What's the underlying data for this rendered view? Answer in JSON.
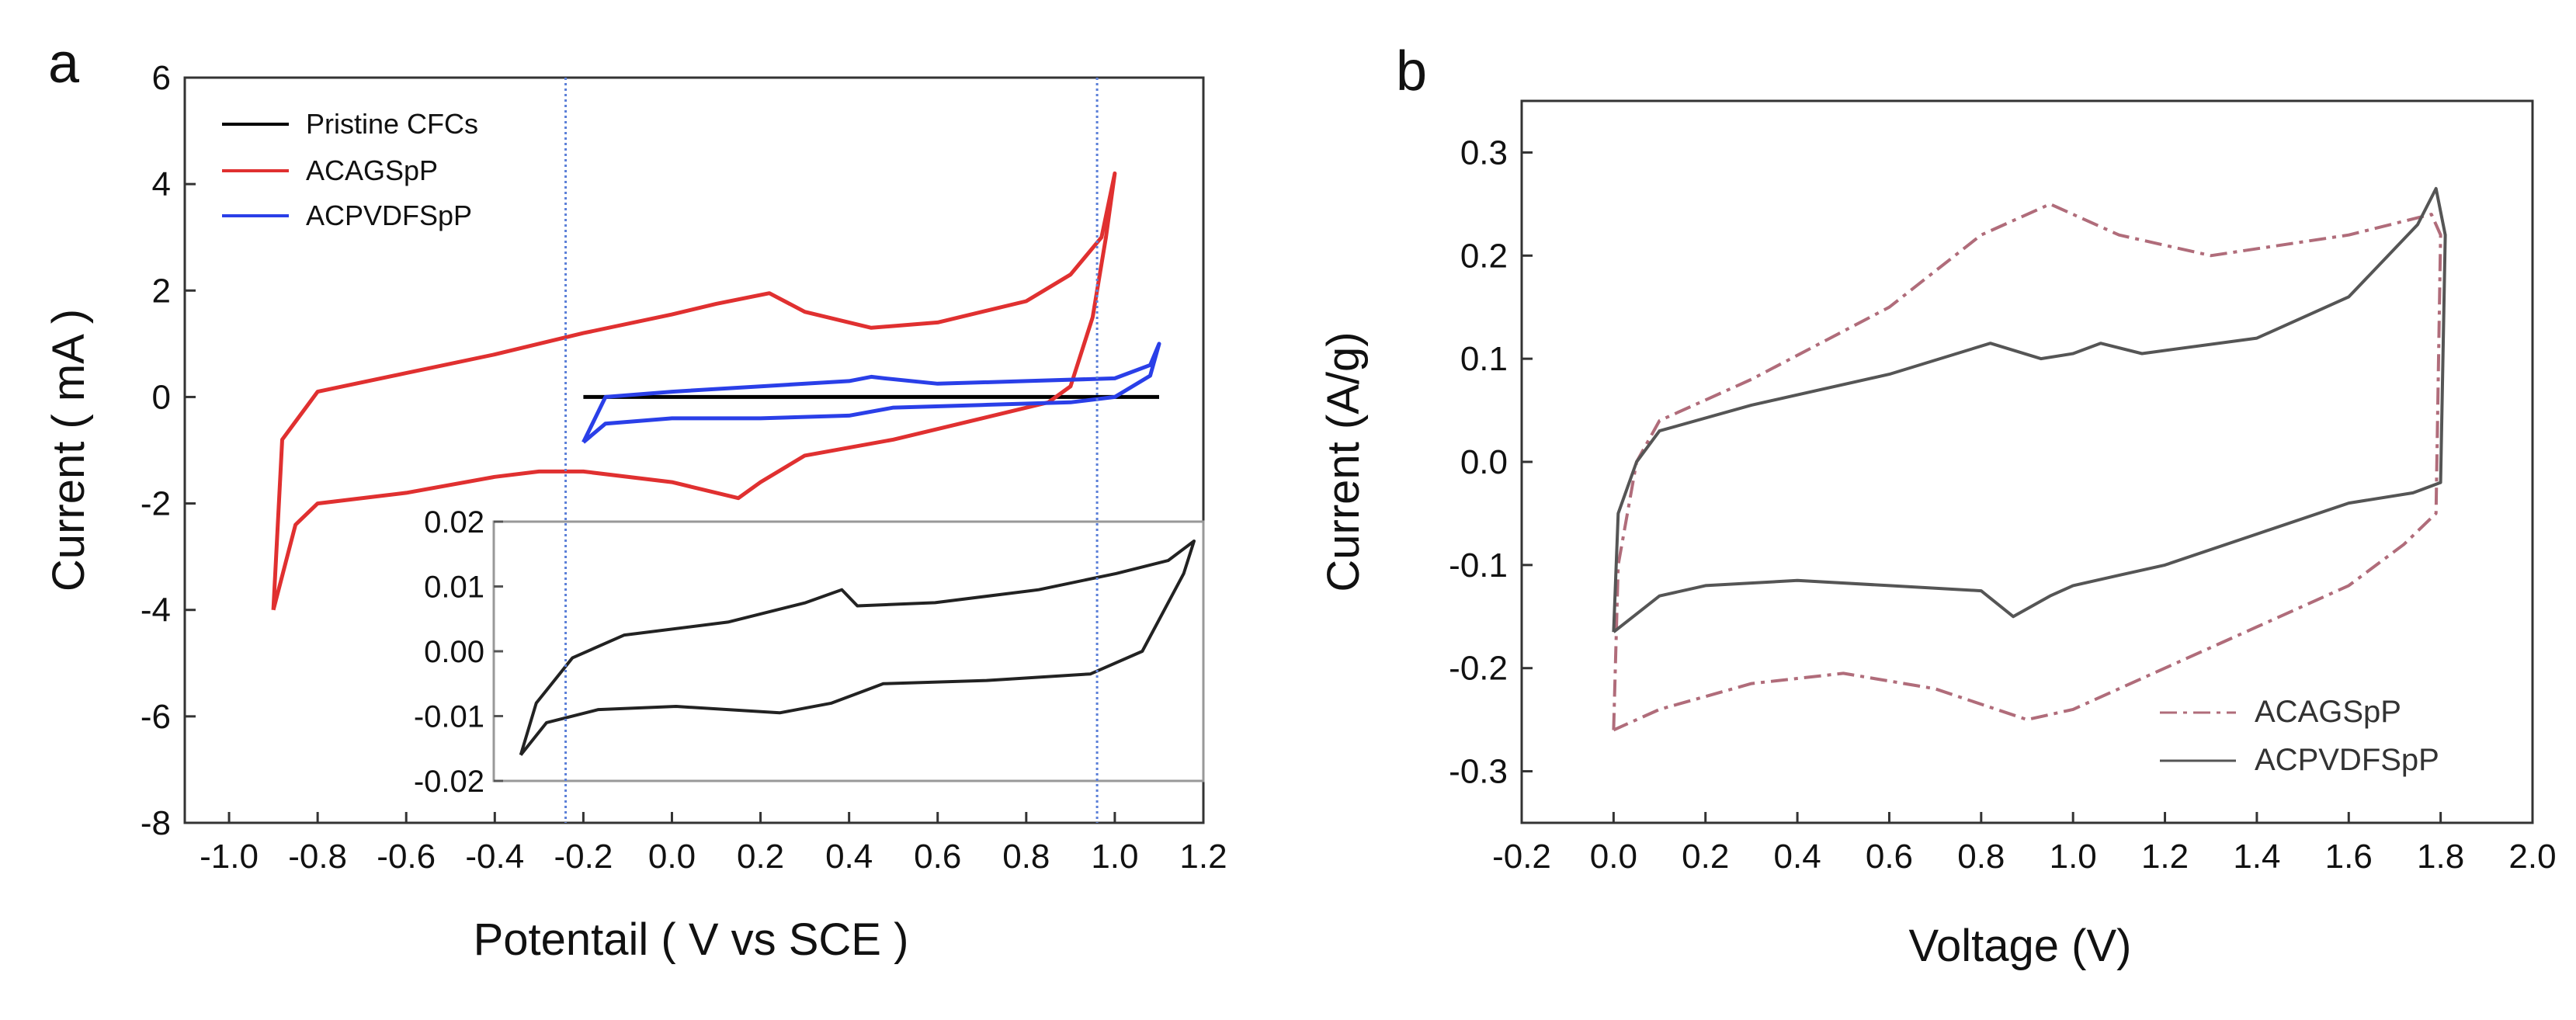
{
  "chart_data": [
    {
      "type": "line",
      "panel_label": "a",
      "xlabel": "Potentail ( V vs SCE )",
      "ylabel": "Current ( mA )",
      "xlim": [
        -1.1,
        1.2
      ],
      "ylim": [
        -8,
        6
      ],
      "x_ticks": [
        "-1.0",
        "-0.8",
        "-0.6",
        "-0.4",
        "-0.2",
        "0.0",
        "0.2",
        "0.4",
        "0.6",
        "0.8",
        "1.0",
        "1.2"
      ],
      "y_ticks": [
        "6",
        "4",
        "2",
        "0",
        "-2",
        "-4",
        "-6",
        "-8"
      ],
      "reference_lines_x": [
        -0.24,
        0.96
      ],
      "legend": [
        "Pristine CFCs",
        "ACAGSpP",
        "ACPVDFSpP"
      ],
      "series": [
        {
          "name": "Pristine CFCs",
          "color": "#000000",
          "points": [
            [
              -0.2,
              0
            ],
            [
              1.1,
              0
            ]
          ]
        },
        {
          "name": "ACAGSpP",
          "color": "#e03030",
          "points": [
            [
              -0.9,
              -4
            ],
            [
              -0.85,
              -2.4
            ],
            [
              -0.8,
              -2.0
            ],
            [
              -0.6,
              -1.8
            ],
            [
              -0.4,
              -1.5
            ],
            [
              -0.3,
              -1.4
            ],
            [
              -0.2,
              -1.4
            ],
            [
              0.0,
              -1.6
            ],
            [
              0.15,
              -1.9
            ],
            [
              0.2,
              -1.6
            ],
            [
              0.3,
              -1.1
            ],
            [
              0.5,
              -0.8
            ],
            [
              0.7,
              -0.4
            ],
            [
              0.85,
              -0.1
            ],
            [
              0.9,
              0.2
            ],
            [
              0.95,
              1.5
            ],
            [
              0.98,
              3.0
            ],
            [
              1.0,
              4.2
            ],
            [
              0.97,
              3.0
            ],
            [
              0.9,
              2.3
            ],
            [
              0.8,
              1.8
            ],
            [
              0.6,
              1.4
            ],
            [
              0.45,
              1.3
            ],
            [
              0.3,
              1.6
            ],
            [
              0.22,
              1.95
            ],
            [
              0.1,
              1.75
            ],
            [
              0.0,
              1.55
            ],
            [
              -0.2,
              1.2
            ],
            [
              -0.4,
              0.8
            ],
            [
              -0.6,
              0.45
            ],
            [
              -0.8,
              0.1
            ],
            [
              -0.88,
              -0.8
            ],
            [
              -0.9,
              -4
            ]
          ]
        },
        {
          "name": "ACPVDFSpP",
          "color": "#2a3fe8",
          "points": [
            [
              -0.2,
              -0.85
            ],
            [
              -0.15,
              -0.5
            ],
            [
              0.0,
              -0.4
            ],
            [
              0.2,
              -0.4
            ],
            [
              0.4,
              -0.35
            ],
            [
              0.5,
              -0.2
            ],
            [
              0.7,
              -0.15
            ],
            [
              0.9,
              -0.1
            ],
            [
              1.0,
              0.0
            ],
            [
              1.08,
              0.4
            ],
            [
              1.1,
              1.0
            ],
            [
              1.08,
              0.6
            ],
            [
              1.0,
              0.35
            ],
            [
              0.8,
              0.3
            ],
            [
              0.6,
              0.25
            ],
            [
              0.48,
              0.35
            ],
            [
              0.45,
              0.38
            ],
            [
              0.4,
              0.3
            ],
            [
              0.2,
              0.2
            ],
            [
              0.0,
              0.1
            ],
            [
              -0.15,
              0.0
            ],
            [
              -0.2,
              -0.85
            ]
          ]
        }
      ],
      "inset": {
        "xlim": [
          -0.24,
          1.1
        ],
        "ylim": [
          -0.02,
          0.02
        ],
        "y_ticks": [
          "0.02",
          "0.01",
          "0.00",
          "-0.01",
          "-0.02"
        ],
        "series": [
          {
            "name": "Pristine CFCs",
            "color": "#222222",
            "points": [
              [
                -0.2,
                -0.016
              ],
              [
                -0.15,
                -0.011
              ],
              [
                -0.05,
                -0.009
              ],
              [
                0.1,
                -0.0085
              ],
              [
                0.3,
                -0.0095
              ],
              [
                0.4,
                -0.008
              ],
              [
                0.5,
                -0.005
              ],
              [
                0.7,
                -0.0045
              ],
              [
                0.9,
                -0.0035
              ],
              [
                1.0,
                0.0
              ],
              [
                1.08,
                0.012
              ],
              [
                1.1,
                0.017
              ],
              [
                1.05,
                0.014
              ],
              [
                0.95,
                0.012
              ],
              [
                0.8,
                0.0095
              ],
              [
                0.6,
                0.0075
              ],
              [
                0.45,
                0.007
              ],
              [
                0.42,
                0.0095
              ],
              [
                0.35,
                0.0075
              ],
              [
                0.2,
                0.0045
              ],
              [
                0.0,
                0.0025
              ],
              [
                -0.1,
                -0.001
              ],
              [
                -0.17,
                -0.008
              ],
              [
                -0.2,
                -0.016
              ]
            ]
          }
        ]
      }
    },
    {
      "type": "line",
      "panel_label": "b",
      "xlabel": "Voltage (V)",
      "ylabel": "Current (A/g)",
      "xlim": [
        -0.2,
        2.0
      ],
      "ylim": [
        -0.35,
        0.35
      ],
      "x_ticks": [
        "-0.2",
        "0.0",
        "0.2",
        "0.4",
        "0.6",
        "0.8",
        "1.0",
        "1.2",
        "1.4",
        "1.6",
        "1.8",
        "2.0"
      ],
      "y_ticks": [
        "0.3",
        "0.2",
        "0.1",
        "0.0",
        "-0.1",
        "-0.2",
        "-0.3"
      ],
      "legend": [
        "ACAGSpP",
        "ACPVDFSpP"
      ],
      "series": [
        {
          "name": "ACAGSpP",
          "color": "#b06c7a",
          "dash": "dashdot",
          "points": [
            [
              0.0,
              -0.26
            ],
            [
              0.01,
              -0.1
            ],
            [
              0.05,
              0.0
            ],
            [
              0.1,
              0.04
            ],
            [
              0.3,
              0.08
            ],
            [
              0.6,
              0.15
            ],
            [
              0.8,
              0.22
            ],
            [
              0.95,
              0.25
            ],
            [
              1.1,
              0.22
            ],
            [
              1.3,
              0.2
            ],
            [
              1.6,
              0.22
            ],
            [
              1.78,
              0.24
            ],
            [
              1.8,
              0.22
            ],
            [
              1.79,
              -0.05
            ],
            [
              1.72,
              -0.08
            ],
            [
              1.6,
              -0.12
            ],
            [
              1.4,
              -0.16
            ],
            [
              1.2,
              -0.2
            ],
            [
              1.0,
              -0.24
            ],
            [
              0.9,
              -0.25
            ],
            [
              0.7,
              -0.22
            ],
            [
              0.5,
              -0.205
            ],
            [
              0.3,
              -0.215
            ],
            [
              0.1,
              -0.24
            ],
            [
              0.0,
              -0.26
            ]
          ]
        },
        {
          "name": "ACPVDFSpP",
          "color": "#555555",
          "dash": "solid",
          "points": [
            [
              0.0,
              -0.165
            ],
            [
              0.01,
              -0.05
            ],
            [
              0.05,
              0.0
            ],
            [
              0.1,
              0.03
            ],
            [
              0.3,
              0.055
            ],
            [
              0.6,
              0.085
            ],
            [
              0.82,
              0.115
            ],
            [
              0.93,
              0.1
            ],
            [
              1.0,
              0.105
            ],
            [
              1.06,
              0.115
            ],
            [
              1.15,
              0.105
            ],
            [
              1.4,
              0.12
            ],
            [
              1.6,
              0.16
            ],
            [
              1.75,
              0.23
            ],
            [
              1.79,
              0.265
            ],
            [
              1.81,
              0.22
            ],
            [
              1.8,
              -0.02
            ],
            [
              1.74,
              -0.03
            ],
            [
              1.6,
              -0.04
            ],
            [
              1.4,
              -0.07
            ],
            [
              1.2,
              -0.1
            ],
            [
              1.1,
              -0.11
            ],
            [
              1.0,
              -0.12
            ],
            [
              0.95,
              -0.13
            ],
            [
              0.87,
              -0.15
            ],
            [
              0.8,
              -0.125
            ],
            [
              0.6,
              -0.12
            ],
            [
              0.4,
              -0.115
            ],
            [
              0.2,
              -0.12
            ],
            [
              0.1,
              -0.13
            ],
            [
              0.0,
              -0.165
            ]
          ]
        }
      ]
    }
  ]
}
